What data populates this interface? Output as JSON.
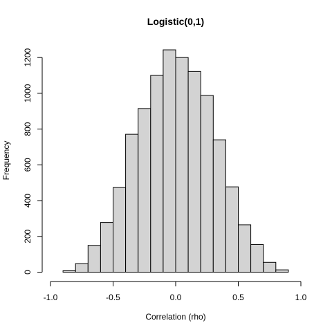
{
  "chart_data": {
    "type": "bar",
    "title": "Logistic(0,1)",
    "xlabel": "Correlation (rho)",
    "ylabel": "Frequency",
    "bin_edges": [
      -0.9,
      -0.8,
      -0.7,
      -0.6,
      -0.5,
      -0.4,
      -0.3,
      -0.2,
      -0.1,
      0.0,
      0.1,
      0.2,
      0.3,
      0.4,
      0.5,
      0.6,
      0.7,
      0.8,
      0.9
    ],
    "values": [
      8,
      48,
      150,
      278,
      473,
      771,
      915,
      1100,
      1243,
      1200,
      1122,
      988,
      740,
      477,
      265,
      155,
      55,
      13
    ],
    "xlim": [
      -1.0,
      1.0
    ],
    "ylim": [
      0,
      1250
    ],
    "xticks": [
      -1.0,
      -0.5,
      0.0,
      0.5,
      1.0
    ],
    "xtick_labels": [
      "-1.0",
      "-0.5",
      "0.0",
      "0.5",
      "1.0"
    ],
    "yticks": [
      0,
      200,
      400,
      600,
      800,
      1000,
      1200
    ],
    "ytick_labels": [
      "0",
      "200",
      "400",
      "600",
      "800",
      "1000",
      "1200"
    ],
    "colors": {
      "bar_fill": "#d3d3d3",
      "bar_stroke": "#000000"
    },
    "grid": false,
    "legend": "none"
  }
}
